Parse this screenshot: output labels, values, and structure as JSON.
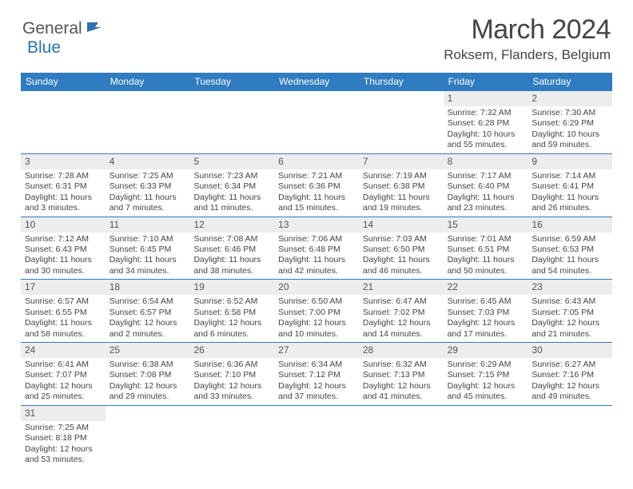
{
  "logo": {
    "general": "General",
    "blue": "Blue"
  },
  "title": "March 2024",
  "location": "Roksem, Flanders, Belgium",
  "colors": {
    "header_blue": "#2f7cc0",
    "logo_blue": "#2a72b5",
    "text_gray": "#555555",
    "body_text": "#444444",
    "daynum_bg": "#ededed",
    "border_blue": "#2f7cc0"
  },
  "dayNames": [
    "Sunday",
    "Monday",
    "Tuesday",
    "Wednesday",
    "Thursday",
    "Friday",
    "Saturday"
  ],
  "weeks": [
    [
      {
        "n": "",
        "sr": "",
        "ss": "",
        "dl": ""
      },
      {
        "n": "",
        "sr": "",
        "ss": "",
        "dl": ""
      },
      {
        "n": "",
        "sr": "",
        "ss": "",
        "dl": ""
      },
      {
        "n": "",
        "sr": "",
        "ss": "",
        "dl": ""
      },
      {
        "n": "",
        "sr": "",
        "ss": "",
        "dl": ""
      },
      {
        "n": "1",
        "sr": "Sunrise: 7:32 AM",
        "ss": "Sunset: 6:28 PM",
        "dl": "Daylight: 10 hours and 55 minutes."
      },
      {
        "n": "2",
        "sr": "Sunrise: 7:30 AM",
        "ss": "Sunset: 6:29 PM",
        "dl": "Daylight: 10 hours and 59 minutes."
      }
    ],
    [
      {
        "n": "3",
        "sr": "Sunrise: 7:28 AM",
        "ss": "Sunset: 6:31 PM",
        "dl": "Daylight: 11 hours and 3 minutes."
      },
      {
        "n": "4",
        "sr": "Sunrise: 7:25 AM",
        "ss": "Sunset: 6:33 PM",
        "dl": "Daylight: 11 hours and 7 minutes."
      },
      {
        "n": "5",
        "sr": "Sunrise: 7:23 AM",
        "ss": "Sunset: 6:34 PM",
        "dl": "Daylight: 11 hours and 11 minutes."
      },
      {
        "n": "6",
        "sr": "Sunrise: 7:21 AM",
        "ss": "Sunset: 6:36 PM",
        "dl": "Daylight: 11 hours and 15 minutes."
      },
      {
        "n": "7",
        "sr": "Sunrise: 7:19 AM",
        "ss": "Sunset: 6:38 PM",
        "dl": "Daylight: 11 hours and 19 minutes."
      },
      {
        "n": "8",
        "sr": "Sunrise: 7:17 AM",
        "ss": "Sunset: 6:40 PM",
        "dl": "Daylight: 11 hours and 23 minutes."
      },
      {
        "n": "9",
        "sr": "Sunrise: 7:14 AM",
        "ss": "Sunset: 6:41 PM",
        "dl": "Daylight: 11 hours and 26 minutes."
      }
    ],
    [
      {
        "n": "10",
        "sr": "Sunrise: 7:12 AM",
        "ss": "Sunset: 6:43 PM",
        "dl": "Daylight: 11 hours and 30 minutes."
      },
      {
        "n": "11",
        "sr": "Sunrise: 7:10 AM",
        "ss": "Sunset: 6:45 PM",
        "dl": "Daylight: 11 hours and 34 minutes."
      },
      {
        "n": "12",
        "sr": "Sunrise: 7:08 AM",
        "ss": "Sunset: 6:46 PM",
        "dl": "Daylight: 11 hours and 38 minutes."
      },
      {
        "n": "13",
        "sr": "Sunrise: 7:06 AM",
        "ss": "Sunset: 6:48 PM",
        "dl": "Daylight: 11 hours and 42 minutes."
      },
      {
        "n": "14",
        "sr": "Sunrise: 7:03 AM",
        "ss": "Sunset: 6:50 PM",
        "dl": "Daylight: 11 hours and 46 minutes."
      },
      {
        "n": "15",
        "sr": "Sunrise: 7:01 AM",
        "ss": "Sunset: 6:51 PM",
        "dl": "Daylight: 11 hours and 50 minutes."
      },
      {
        "n": "16",
        "sr": "Sunrise: 6:59 AM",
        "ss": "Sunset: 6:53 PM",
        "dl": "Daylight: 11 hours and 54 minutes."
      }
    ],
    [
      {
        "n": "17",
        "sr": "Sunrise: 6:57 AM",
        "ss": "Sunset: 6:55 PM",
        "dl": "Daylight: 11 hours and 58 minutes."
      },
      {
        "n": "18",
        "sr": "Sunrise: 6:54 AM",
        "ss": "Sunset: 6:57 PM",
        "dl": "Daylight: 12 hours and 2 minutes."
      },
      {
        "n": "19",
        "sr": "Sunrise: 6:52 AM",
        "ss": "Sunset: 6:58 PM",
        "dl": "Daylight: 12 hours and 6 minutes."
      },
      {
        "n": "20",
        "sr": "Sunrise: 6:50 AM",
        "ss": "Sunset: 7:00 PM",
        "dl": "Daylight: 12 hours and 10 minutes."
      },
      {
        "n": "21",
        "sr": "Sunrise: 6:47 AM",
        "ss": "Sunset: 7:02 PM",
        "dl": "Daylight: 12 hours and 14 minutes."
      },
      {
        "n": "22",
        "sr": "Sunrise: 6:45 AM",
        "ss": "Sunset: 7:03 PM",
        "dl": "Daylight: 12 hours and 17 minutes."
      },
      {
        "n": "23",
        "sr": "Sunrise: 6:43 AM",
        "ss": "Sunset: 7:05 PM",
        "dl": "Daylight: 12 hours and 21 minutes."
      }
    ],
    [
      {
        "n": "24",
        "sr": "Sunrise: 6:41 AM",
        "ss": "Sunset: 7:07 PM",
        "dl": "Daylight: 12 hours and 25 minutes."
      },
      {
        "n": "25",
        "sr": "Sunrise: 6:38 AM",
        "ss": "Sunset: 7:08 PM",
        "dl": "Daylight: 12 hours and 29 minutes."
      },
      {
        "n": "26",
        "sr": "Sunrise: 6:36 AM",
        "ss": "Sunset: 7:10 PM",
        "dl": "Daylight: 12 hours and 33 minutes."
      },
      {
        "n": "27",
        "sr": "Sunrise: 6:34 AM",
        "ss": "Sunset: 7:12 PM",
        "dl": "Daylight: 12 hours and 37 minutes."
      },
      {
        "n": "28",
        "sr": "Sunrise: 6:32 AM",
        "ss": "Sunset: 7:13 PM",
        "dl": "Daylight: 12 hours and 41 minutes."
      },
      {
        "n": "29",
        "sr": "Sunrise: 6:29 AM",
        "ss": "Sunset: 7:15 PM",
        "dl": "Daylight: 12 hours and 45 minutes."
      },
      {
        "n": "30",
        "sr": "Sunrise: 6:27 AM",
        "ss": "Sunset: 7:16 PM",
        "dl": "Daylight: 12 hours and 49 minutes."
      }
    ],
    [
      {
        "n": "31",
        "sr": "Sunrise: 7:25 AM",
        "ss": "Sunset: 8:18 PM",
        "dl": "Daylight: 12 hours and 53 minutes."
      },
      {
        "n": "",
        "sr": "",
        "ss": "",
        "dl": ""
      },
      {
        "n": "",
        "sr": "",
        "ss": "",
        "dl": ""
      },
      {
        "n": "",
        "sr": "",
        "ss": "",
        "dl": ""
      },
      {
        "n": "",
        "sr": "",
        "ss": "",
        "dl": ""
      },
      {
        "n": "",
        "sr": "",
        "ss": "",
        "dl": ""
      },
      {
        "n": "",
        "sr": "",
        "ss": "",
        "dl": ""
      }
    ]
  ]
}
